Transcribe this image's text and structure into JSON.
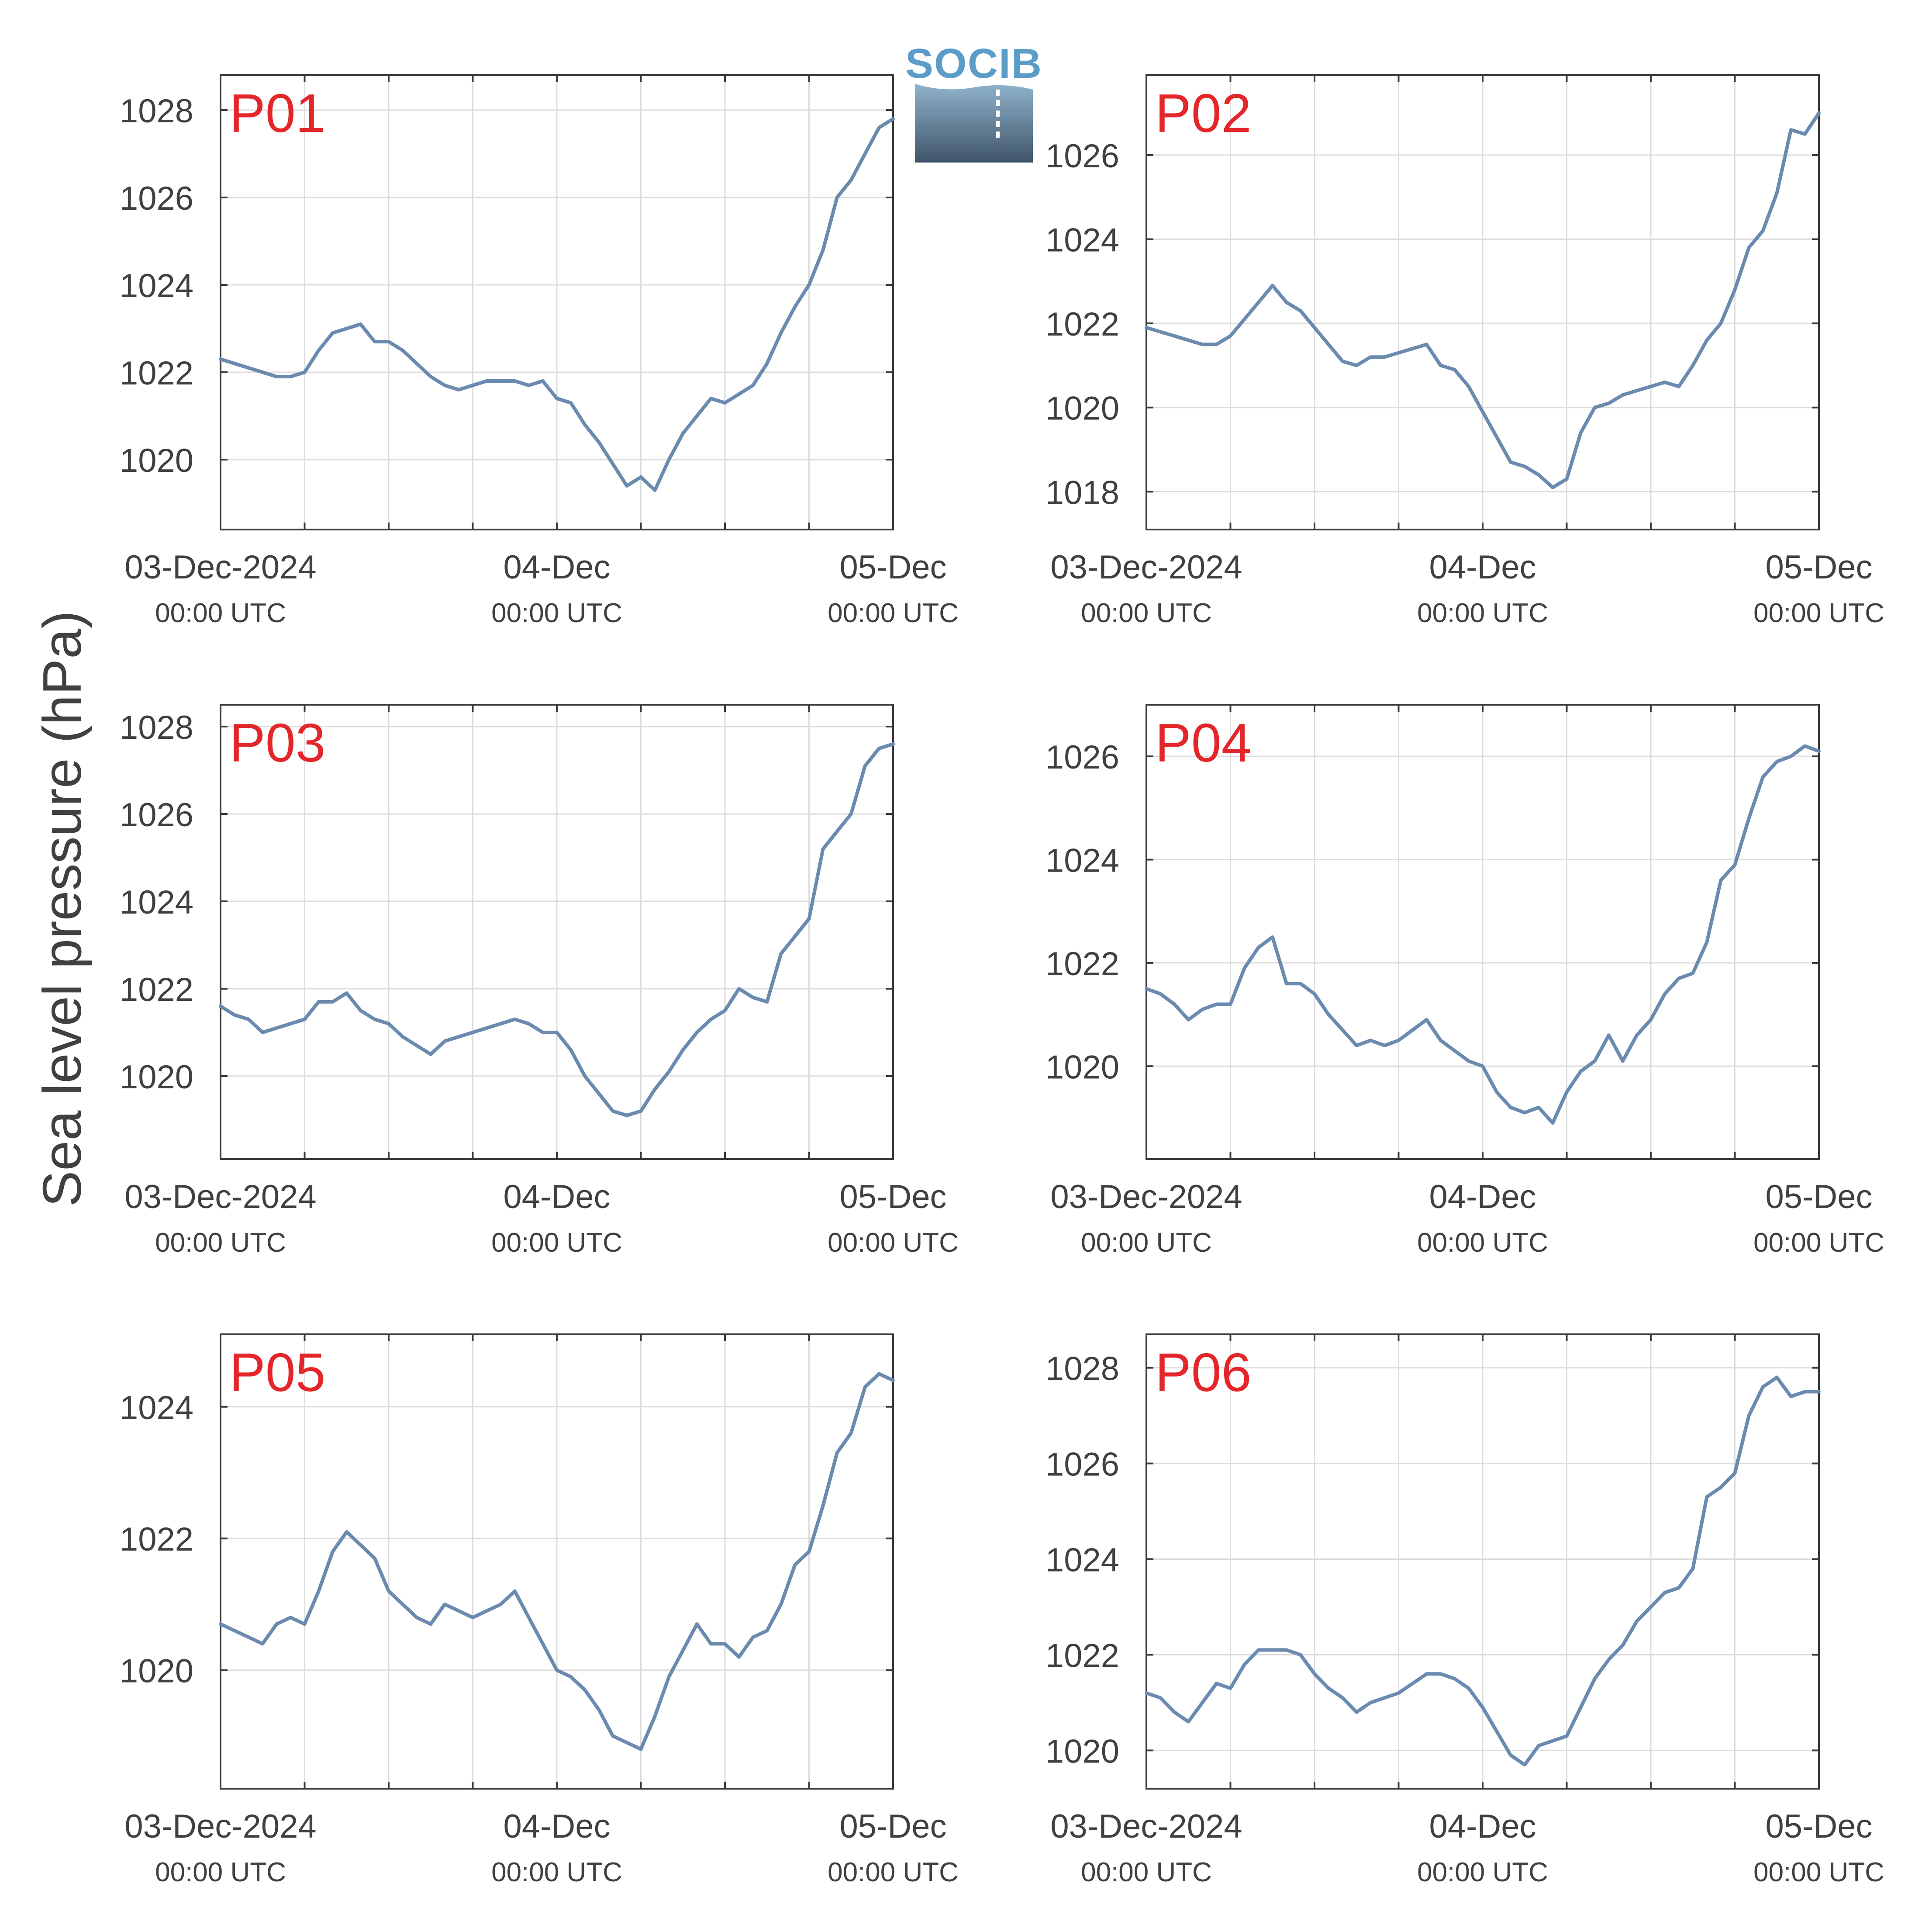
{
  "figure": {
    "ylabel": "Sea level pressure (hPa)",
    "line_color": "#6a8aaf",
    "label_color": "#e3262a",
    "axis_color": "#3a3a3a",
    "grid_color": "#dcdcdc",
    "text_color": "#404040"
  },
  "logo": {
    "text": "SOCIB",
    "icon": "socib-logo",
    "color": "#5b9cc9"
  },
  "x_ticks": [
    {
      "major": "03-Dec-2024",
      "minor": "00:00 UTC"
    },
    {
      "major": "04-Dec",
      "minor": "00:00 UTC"
    },
    {
      "major": "05-Dec",
      "minor": "00:00 UTC"
    }
  ],
  "chart_data": [
    {
      "type": "line",
      "label": "P01",
      "x_unit": "hours since 03-Dec-2024 00:00 UTC",
      "xlim": [
        0,
        48
      ],
      "ylim": [
        1018.4,
        1028.8
      ],
      "yticks": [
        1020,
        1022,
        1024,
        1026,
        1028
      ],
      "grid": true,
      "series": [
        {
          "x": [
            0,
            1,
            2,
            3,
            4,
            5,
            6,
            7,
            8,
            9,
            10,
            11,
            12,
            13,
            14,
            15,
            16,
            17,
            18,
            19,
            20,
            21,
            22,
            23,
            24,
            25,
            26,
            27,
            28,
            29,
            30,
            31,
            32,
            33,
            34,
            35,
            36,
            37,
            38,
            39,
            40,
            41,
            42,
            43,
            44,
            45,
            46,
            47,
            48
          ],
          "y": [
            1022.3,
            1022.2,
            1022.1,
            1022.0,
            1021.9,
            1021.9,
            1022.0,
            1022.5,
            1022.9,
            1023.0,
            1023.1,
            1022.7,
            1022.7,
            1022.5,
            1022.2,
            1021.9,
            1021.7,
            1021.6,
            1021.7,
            1021.8,
            1021.8,
            1021.8,
            1021.7,
            1021.8,
            1021.4,
            1021.3,
            1020.8,
            1020.4,
            1019.9,
            1019.4,
            1019.6,
            1019.3,
            1020.0,
            1020.6,
            1021.0,
            1021.4,
            1021.3,
            1021.5,
            1021.7,
            1022.2,
            1022.9,
            1023.5,
            1024.0,
            1024.8,
            1026.0,
            1026.4,
            1027.0,
            1027.6,
            1027.8
          ]
        }
      ]
    },
    {
      "type": "line",
      "label": "P02",
      "x_unit": "hours since 03-Dec-2024 00:00 UTC",
      "xlim": [
        0,
        48
      ],
      "ylim": [
        1017.1,
        1027.9
      ],
      "yticks": [
        1018,
        1020,
        1022,
        1024,
        1026
      ],
      "grid": true,
      "series": [
        {
          "x": [
            0,
            1,
            2,
            3,
            4,
            5,
            6,
            7,
            8,
            9,
            10,
            11,
            12,
            13,
            14,
            15,
            16,
            17,
            18,
            19,
            20,
            21,
            22,
            23,
            24,
            25,
            26,
            27,
            28,
            29,
            30,
            31,
            32,
            33,
            34,
            35,
            36,
            37,
            38,
            39,
            40,
            41,
            42,
            43,
            44,
            45,
            46,
            47,
            48
          ],
          "y": [
            1021.9,
            1021.8,
            1021.7,
            1021.6,
            1021.5,
            1021.5,
            1021.7,
            1022.1,
            1022.5,
            1022.9,
            1022.5,
            1022.3,
            1021.9,
            1021.5,
            1021.1,
            1021.0,
            1021.2,
            1021.2,
            1021.3,
            1021.4,
            1021.5,
            1021.0,
            1020.9,
            1020.5,
            1019.9,
            1019.3,
            1018.7,
            1018.6,
            1018.4,
            1018.1,
            1018.3,
            1019.4,
            1020.0,
            1020.1,
            1020.3,
            1020.4,
            1020.5,
            1020.6,
            1020.5,
            1021.0,
            1021.6,
            1022.0,
            1022.8,
            1023.8,
            1024.2,
            1025.1,
            1026.6,
            1026.5,
            1027.0
          ]
        }
      ]
    },
    {
      "type": "line",
      "label": "P03",
      "x_unit": "hours since 03-Dec-2024 00:00 UTC",
      "xlim": [
        0,
        48
      ],
      "ylim": [
        1018.1,
        1028.5
      ],
      "yticks": [
        1020,
        1022,
        1024,
        1026,
        1028
      ],
      "grid": true,
      "series": [
        {
          "x": [
            0,
            1,
            2,
            3,
            4,
            5,
            6,
            7,
            8,
            9,
            10,
            11,
            12,
            13,
            14,
            15,
            16,
            17,
            18,
            19,
            20,
            21,
            22,
            23,
            24,
            25,
            26,
            27,
            28,
            29,
            30,
            31,
            32,
            33,
            34,
            35,
            36,
            37,
            38,
            39,
            40,
            41,
            42,
            43,
            44,
            45,
            46,
            47,
            48
          ],
          "y": [
            1021.6,
            1021.4,
            1021.3,
            1021.0,
            1021.1,
            1021.2,
            1021.3,
            1021.7,
            1021.7,
            1021.9,
            1021.5,
            1021.3,
            1021.2,
            1020.9,
            1020.7,
            1020.5,
            1020.8,
            1020.9,
            1021.0,
            1021.1,
            1021.2,
            1021.3,
            1021.2,
            1021.0,
            1021.0,
            1020.6,
            1020.0,
            1019.6,
            1019.2,
            1019.1,
            1019.2,
            1019.7,
            1020.1,
            1020.6,
            1021.0,
            1021.3,
            1021.5,
            1022.0,
            1021.8,
            1021.7,
            1022.8,
            1023.2,
            1023.6,
            1025.2,
            1025.6,
            1026.0,
            1027.1,
            1027.5,
            1027.6
          ]
        }
      ]
    },
    {
      "type": "line",
      "label": "P04",
      "x_unit": "hours since 03-Dec-2024 00:00 UTC",
      "xlim": [
        0,
        48
      ],
      "ylim": [
        1018.2,
        1027.0
      ],
      "yticks": [
        1020,
        1022,
        1024,
        1026
      ],
      "grid": true,
      "series": [
        {
          "x": [
            0,
            1,
            2,
            3,
            4,
            5,
            6,
            7,
            8,
            9,
            10,
            11,
            12,
            13,
            14,
            15,
            16,
            17,
            18,
            19,
            20,
            21,
            22,
            23,
            24,
            25,
            26,
            27,
            28,
            29,
            30,
            31,
            32,
            33,
            34,
            35,
            36,
            37,
            38,
            39,
            40,
            41,
            42,
            43,
            44,
            45,
            46,
            47,
            48
          ],
          "y": [
            1021.5,
            1021.4,
            1021.2,
            1020.9,
            1021.1,
            1021.2,
            1021.2,
            1021.9,
            1022.3,
            1022.5,
            1021.6,
            1021.6,
            1021.4,
            1021.0,
            1020.7,
            1020.4,
            1020.5,
            1020.4,
            1020.5,
            1020.7,
            1020.9,
            1020.5,
            1020.3,
            1020.1,
            1020.0,
            1019.5,
            1019.2,
            1019.1,
            1019.2,
            1018.9,
            1019.5,
            1019.9,
            1020.1,
            1020.6,
            1020.1,
            1020.6,
            1020.9,
            1021.4,
            1021.7,
            1021.8,
            1022.4,
            1023.6,
            1023.9,
            1024.8,
            1025.6,
            1025.9,
            1026.0,
            1026.2,
            1026.1
          ]
        }
      ]
    },
    {
      "type": "line",
      "label": "P05",
      "x_unit": "hours since 03-Dec-2024 00:00 UTC",
      "xlim": [
        0,
        48
      ],
      "ylim": [
        1018.2,
        1025.1
      ],
      "yticks": [
        1020,
        1022,
        1024
      ],
      "grid": true,
      "series": [
        {
          "x": [
            0,
            1,
            2,
            3,
            4,
            5,
            6,
            7,
            8,
            9,
            10,
            11,
            12,
            13,
            14,
            15,
            16,
            17,
            18,
            19,
            20,
            21,
            22,
            23,
            24,
            25,
            26,
            27,
            28,
            29,
            30,
            31,
            32,
            33,
            34,
            35,
            36,
            37,
            38,
            39,
            40,
            41,
            42,
            43,
            44,
            45,
            46,
            47,
            48
          ],
          "y": [
            1020.7,
            1020.6,
            1020.5,
            1020.4,
            1020.7,
            1020.8,
            1020.7,
            1021.2,
            1021.8,
            1022.1,
            1021.9,
            1021.7,
            1021.2,
            1021.0,
            1020.8,
            1020.7,
            1021.0,
            1020.9,
            1020.8,
            1020.9,
            1021.0,
            1021.2,
            1020.8,
            1020.4,
            1020.0,
            1019.9,
            1019.7,
            1019.4,
            1019.0,
            1018.9,
            1018.8,
            1019.3,
            1019.9,
            1020.3,
            1020.7,
            1020.4,
            1020.4,
            1020.2,
            1020.5,
            1020.6,
            1021.0,
            1021.6,
            1021.8,
            1022.5,
            1023.3,
            1023.6,
            1024.3,
            1024.5,
            1024.4
          ]
        }
      ]
    },
    {
      "type": "line",
      "label": "P06",
      "x_unit": "hours since 03-Dec-2024 00:00 UTC",
      "xlim": [
        0,
        48
      ],
      "ylim": [
        1019.2,
        1028.7
      ],
      "yticks": [
        1020,
        1022,
        1024,
        1026,
        1028
      ],
      "grid": true,
      "series": [
        {
          "x": [
            0,
            1,
            2,
            3,
            4,
            5,
            6,
            7,
            8,
            9,
            10,
            11,
            12,
            13,
            14,
            15,
            16,
            17,
            18,
            19,
            20,
            21,
            22,
            23,
            24,
            25,
            26,
            27,
            28,
            29,
            30,
            31,
            32,
            33,
            34,
            35,
            36,
            37,
            38,
            39,
            40,
            41,
            42,
            43,
            44,
            45,
            46,
            47,
            48
          ],
          "y": [
            1021.2,
            1021.1,
            1020.8,
            1020.6,
            1021.0,
            1021.4,
            1021.3,
            1021.8,
            1022.1,
            1022.1,
            1022.1,
            1022.0,
            1021.6,
            1021.3,
            1021.1,
            1020.8,
            1021.0,
            1021.1,
            1021.2,
            1021.4,
            1021.6,
            1021.6,
            1021.5,
            1021.3,
            1020.9,
            1020.4,
            1019.9,
            1019.7,
            1020.1,
            1020.2,
            1020.3,
            1020.9,
            1021.5,
            1021.9,
            1022.2,
            1022.7,
            1023.0,
            1023.3,
            1023.4,
            1023.8,
            1025.3,
            1025.5,
            1025.8,
            1027.0,
            1027.6,
            1027.8,
            1027.4,
            1027.5,
            1027.5
          ]
        }
      ]
    }
  ]
}
